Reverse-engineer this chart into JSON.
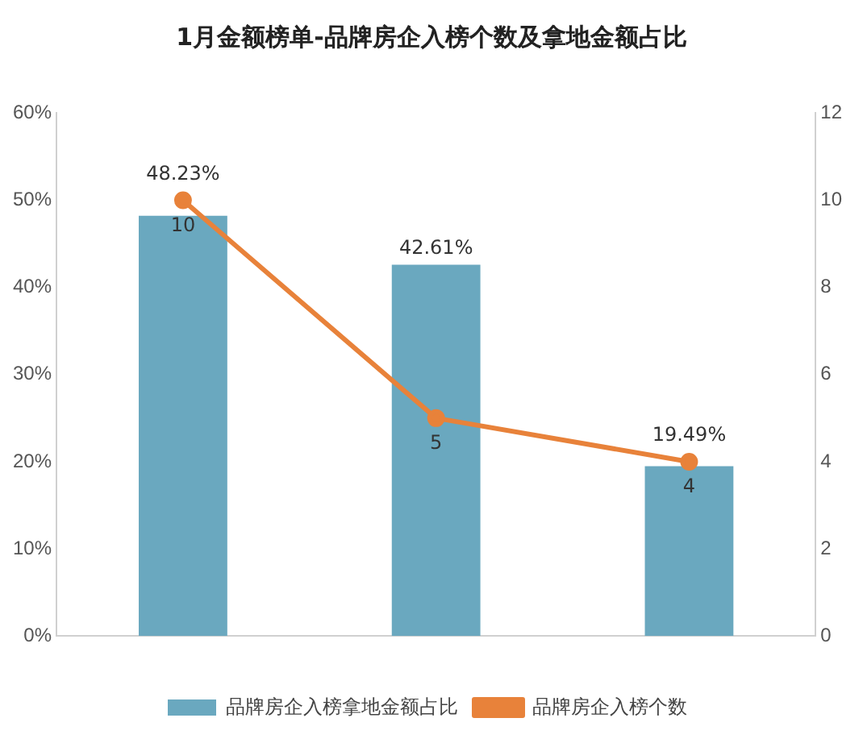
{
  "chart_data": {
    "type": "bar",
    "title": "1月金额榜单-品牌房企入榜个数及拿地金额占比",
    "categories": [
      null,
      null,
      null
    ],
    "series": [
      {
        "name": "品牌房企入榜拿地金额占比",
        "color": "#6aa8bf",
        "values": [
          48.23,
          42.61,
          19.49
        ],
        "value_labels": [
          "48.23%",
          "42.61%",
          "19.49%"
        ]
      },
      {
        "name": "品牌房企入榜个数",
        "type": "line",
        "axis": "y2",
        "color": "#e8823a",
        "values": [
          10,
          5,
          4
        ],
        "value_labels": [
          "10",
          "5",
          "4"
        ]
      }
    ],
    "ylim": [
      0,
      60
    ],
    "yticks": [
      {
        "value": 0,
        "label": "0%"
      },
      {
        "value": 10,
        "label": "10%"
      },
      {
        "value": 20,
        "label": "20%"
      },
      {
        "value": 30,
        "label": "30%"
      },
      {
        "value": 40,
        "label": "40%"
      },
      {
        "value": 50,
        "label": "50%"
      },
      {
        "value": 60,
        "label": "60%"
      }
    ],
    "y2lim": [
      0,
      12
    ],
    "y2ticks": [
      0,
      2,
      4,
      6,
      8,
      10,
      12
    ],
    "grid": false,
    "legend": "bottom",
    "marker": "circle",
    "line_style": "solid"
  }
}
